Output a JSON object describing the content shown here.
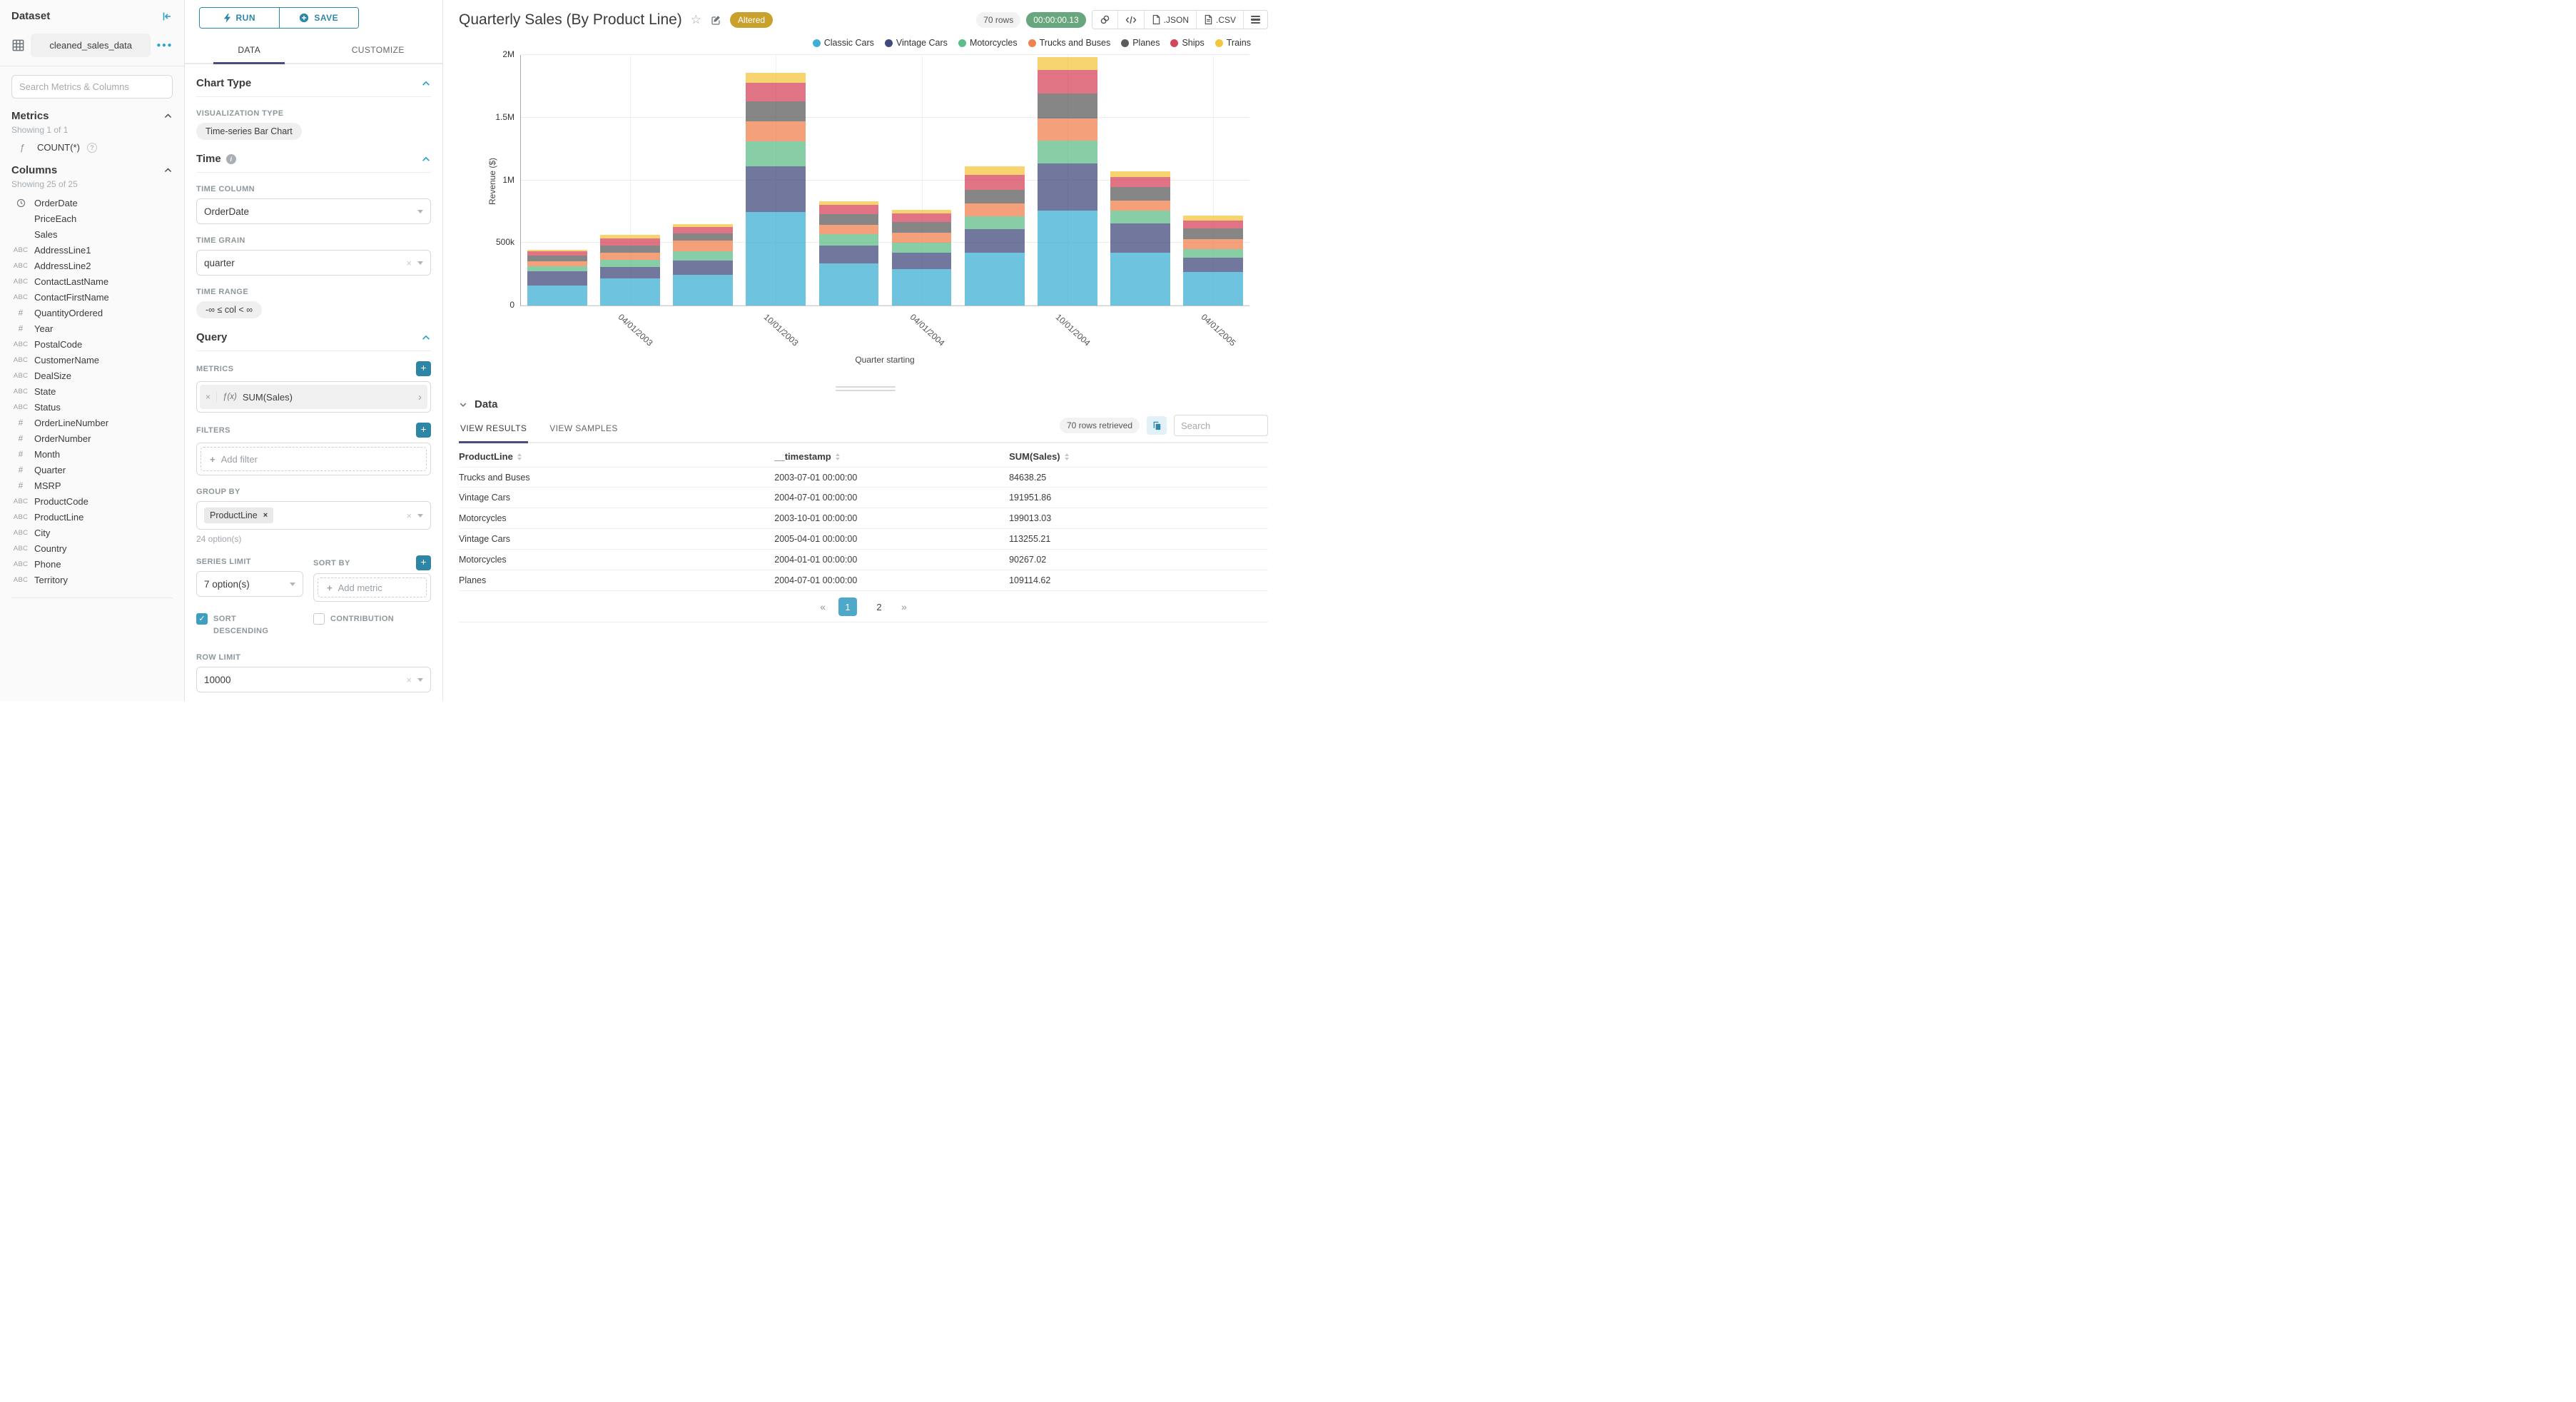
{
  "dataset_panel": {
    "title": "Dataset",
    "dataset_name": "cleaned_sales_data",
    "search_placeholder": "Search Metrics & Columns",
    "metrics_title": "Metrics",
    "metrics_note": "Showing 1 of 1",
    "metric_items": [
      {
        "icon": "function",
        "label": "COUNT(*)"
      }
    ],
    "columns_title": "Columns",
    "columns_note": "Showing 25 of 25",
    "column_items": [
      {
        "type": "time",
        "label": "OrderDate"
      },
      {
        "type": "",
        "label": "PriceEach"
      },
      {
        "type": "",
        "label": "Sales"
      },
      {
        "type": "text",
        "label": "AddressLine1"
      },
      {
        "type": "text",
        "label": "AddressLine2"
      },
      {
        "type": "text",
        "label": "ContactLastName"
      },
      {
        "type": "text",
        "label": "ContactFirstName"
      },
      {
        "type": "number",
        "label": "QuantityOrdered"
      },
      {
        "type": "number",
        "label": "Year"
      },
      {
        "type": "text",
        "label": "PostalCode"
      },
      {
        "type": "text",
        "label": "CustomerName"
      },
      {
        "type": "text",
        "label": "DealSize"
      },
      {
        "type": "text",
        "label": "State"
      },
      {
        "type": "text",
        "label": "Status"
      },
      {
        "type": "number",
        "label": "OrderLineNumber"
      },
      {
        "type": "number",
        "label": "OrderNumber"
      },
      {
        "type": "number",
        "label": "Month"
      },
      {
        "type": "number",
        "label": "Quarter"
      },
      {
        "type": "number",
        "label": "MSRP"
      },
      {
        "type": "text",
        "label": "ProductCode"
      },
      {
        "type": "text",
        "label": "ProductLine"
      },
      {
        "type": "text",
        "label": "City"
      },
      {
        "type": "text",
        "label": "Country"
      },
      {
        "type": "text",
        "label": "Phone"
      },
      {
        "type": "text",
        "label": "Territory"
      }
    ]
  },
  "control_panel": {
    "run_label": "RUN",
    "save_label": "SAVE",
    "tab_data": "DATA",
    "tab_customize": "CUSTOMIZE",
    "chart_type_section": "Chart Type",
    "visualization_type_label": "VISUALIZATION TYPE",
    "visualization_type": "Time-series Bar Chart",
    "time_section": "Time",
    "time_column_label": "TIME COLUMN",
    "time_column": "OrderDate",
    "time_grain_label": "TIME GRAIN",
    "time_grain": "quarter",
    "time_range_label": "TIME RANGE",
    "time_range": "-∞ ≤ col < ∞",
    "query_section": "Query",
    "metrics_label": "METRICS",
    "metric_prefix": "ƒ(x)",
    "metric_value": "SUM(Sales)",
    "filters_label": "FILTERS",
    "add_filter_label": "Add filter",
    "group_by_label": "GROUP BY",
    "group_by_value": "ProductLine",
    "group_by_note": "24 option(s)",
    "series_limit_label": "SERIES LIMIT",
    "series_limit_value": "7 option(s)",
    "sort_by_label": "SORT BY",
    "add_metric_label": "Add metric",
    "sort_descending_label": "SORT DESCENDING",
    "contribution_label": "CONTRIBUTION",
    "row_limit_label": "ROW LIMIT",
    "row_limit_value": "10000"
  },
  "chart_header": {
    "title": "Quarterly Sales (By Product Line)",
    "altered_badge": "Altered",
    "rows_badge": "70 rows",
    "timer": "00:00:00.13",
    "json_label": ".JSON",
    "csv_label": ".CSV"
  },
  "chart_data": {
    "type": "bar",
    "stacked": true,
    "title": "Quarterly Sales (By Product Line)",
    "xlabel": "Quarter starting",
    "ylabel": "Revenue ($)",
    "ylim": [
      0,
      2000000
    ],
    "ytick_labels": [
      "0",
      "500k",
      "1M",
      "1.5M",
      "2M"
    ],
    "grid": true,
    "legend_position": "top-right",
    "bar_opacity": 0.75,
    "categories": [
      "01/01/2003",
      "04/01/2003",
      "07/01/2003",
      "10/01/2003",
      "01/01/2004",
      "04/01/2004",
      "07/01/2004",
      "10/01/2004",
      "01/01/2005",
      "04/01/2005"
    ],
    "labeled_tick_indices": [
      1,
      3,
      5,
      7,
      9
    ],
    "x_tick_labels": [
      "04/01/2003",
      "10/01/2003",
      "04/01/2004",
      "10/01/2004",
      "04/01/2005"
    ],
    "series": [
      {
        "name": "Classic Cars",
        "color": "#3DAFD4",
        "values": [
          161000,
          217000,
          247000,
          745000,
          339000,
          289000,
          420000,
          760000,
          420000,
          267000
        ]
      },
      {
        "name": "Vintage Cars",
        "color": "#414A7C",
        "values": [
          110000,
          93000,
          111000,
          364000,
          142000,
          130000,
          191951.86,
          376000,
          233000,
          113255.21
        ]
      },
      {
        "name": "Motorcycles",
        "color": "#5FBD8A",
        "values": [
          41000,
          52000,
          76000,
          199013.03,
          90267.02,
          81000,
          102000,
          180000,
          103000,
          72000
        ]
      },
      {
        "name": "Trucks and Buses",
        "color": "#F0824F",
        "values": [
          42000,
          61000,
          84638.25,
          160000,
          72000,
          79000,
          101000,
          179000,
          83000,
          79000
        ]
      },
      {
        "name": "Planes",
        "color": "#5D5D5D",
        "values": [
          43000,
          54000,
          56000,
          164000,
          86000,
          88000,
          109114.62,
          196000,
          109000,
          84000
        ]
      },
      {
        "name": "Ships",
        "color": "#D5465C",
        "values": [
          36000,
          61000,
          51000,
          144000,
          73000,
          70000,
          120000,
          190000,
          75000,
          64000
        ]
      },
      {
        "name": "Trains",
        "color": "#F4C63F",
        "values": [
          12000,
          24000,
          24000,
          84000,
          32000,
          29000,
          65000,
          103000,
          49000,
          40000
        ]
      }
    ]
  },
  "data_panel": {
    "section_title": "Data",
    "tab_results": "VIEW RESULTS",
    "tab_samples": "VIEW SAMPLES",
    "rows_retrieved": "70 rows retrieved",
    "search_placeholder": "Search",
    "columns": [
      "ProductLine",
      "__timestamp",
      "SUM(Sales)"
    ],
    "rows": [
      [
        "Trucks and Buses",
        "2003-07-01 00:00:00",
        "84638.25"
      ],
      [
        "Vintage Cars",
        "2004-07-01 00:00:00",
        "191951.86"
      ],
      [
        "Motorcycles",
        "2003-10-01 00:00:00",
        "199013.03"
      ],
      [
        "Vintage Cars",
        "2005-04-01 00:00:00",
        "113255.21"
      ],
      [
        "Motorcycles",
        "2004-01-01 00:00:00",
        "90267.02"
      ],
      [
        "Planes",
        "2004-07-01 00:00:00",
        "109114.62"
      ]
    ],
    "pagination": {
      "prev": "«",
      "pages": [
        "1",
        "2"
      ],
      "active_page": "1",
      "next": "»"
    }
  }
}
